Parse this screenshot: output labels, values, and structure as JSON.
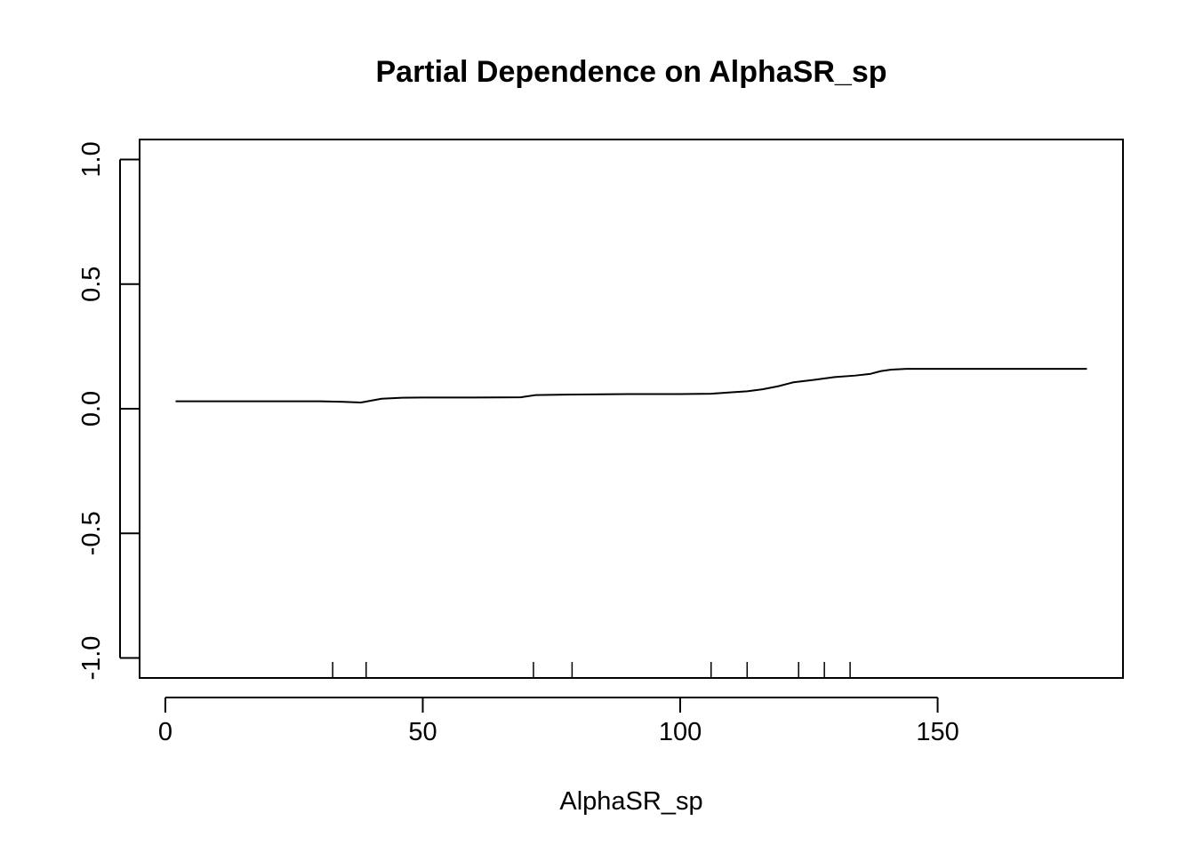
{
  "chart_data": {
    "type": "line",
    "title": "Partial Dependence on AlphaSR_sp",
    "xlabel": "AlphaSR_sp",
    "ylabel": "",
    "xlim": [
      -5,
      186
    ],
    "ylim": [
      -1.08,
      1.08
    ],
    "x_ticks": [
      0,
      50,
      100,
      150
    ],
    "x_tick_labels": [
      "0",
      "50",
      "100",
      "150"
    ],
    "y_ticks": [
      -1.0,
      -0.5,
      0.0,
      0.5,
      1.0
    ],
    "y_tick_labels": [
      "-1.0",
      "-0.5",
      "0.0",
      "0.5",
      "1.0"
    ],
    "grid": false,
    "legend": "none",
    "series": [
      {
        "name": "partial dependence",
        "color": "#000000",
        "x": [
          2,
          30,
          34,
          38,
          42,
          46,
          50,
          60,
          69,
          72,
          80,
          90,
          100,
          106,
          110,
          113,
          116,
          119,
          122,
          126,
          130,
          134,
          137,
          139,
          141,
          144,
          150,
          160,
          170,
          179
        ],
        "y": [
          0.03,
          0.03,
          0.028,
          0.025,
          0.04,
          0.044,
          0.045,
          0.045,
          0.046,
          0.055,
          0.057,
          0.059,
          0.059,
          0.06,
          0.066,
          0.07,
          0.078,
          0.09,
          0.106,
          0.116,
          0.127,
          0.133,
          0.14,
          0.151,
          0.157,
          0.16,
          0.16,
          0.16,
          0.16,
          0.16
        ]
      }
    ],
    "rug": [
      32.5,
      39,
      71.5,
      79,
      106,
      113,
      123,
      128,
      133
    ]
  }
}
